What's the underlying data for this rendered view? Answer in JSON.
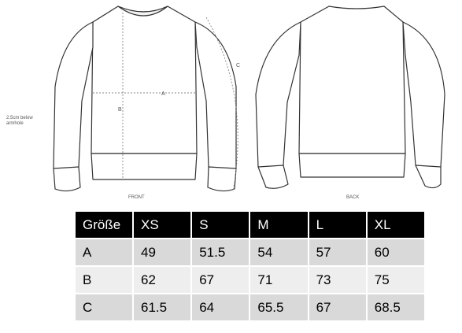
{
  "diagram": {
    "note": "2.5cm below armhole",
    "front_caption": "FRONT",
    "back_caption": "BACK",
    "measure_a": "A",
    "measure_b": "B",
    "measure_c": "C"
  },
  "size_table": {
    "header": [
      "Größe",
      "XS",
      "S",
      "M",
      "L",
      "XL"
    ],
    "rows": [
      [
        "A",
        "49",
        "51.5",
        "54",
        "57",
        "60"
      ],
      [
        "B",
        "62",
        "67",
        "71",
        "73",
        "75"
      ],
      [
        "C",
        "61.5",
        "64",
        "65.5",
        "67",
        "68.5"
      ]
    ]
  }
}
